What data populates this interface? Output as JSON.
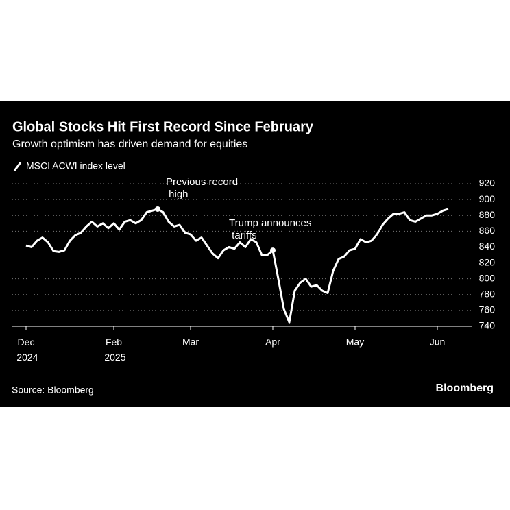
{
  "chart_data": {
    "type": "line",
    "title": "Global Stocks Hit First Record Since February",
    "subtitle": "Growth optimism has driven demand for equities",
    "source": "Source: Bloomberg",
    "brand": "Bloomberg",
    "categories": [
      "Dec 2024",
      null,
      null,
      null,
      null,
      null,
      null,
      null,
      null,
      null,
      null,
      null,
      null,
      null,
      null,
      null,
      "Feb 2025",
      null,
      null,
      null,
      null,
      null,
      null,
      null,
      null,
      null,
      null,
      null,
      null,
      null,
      "Mar",
      null,
      null,
      null,
      null,
      null,
      null,
      null,
      null,
      null,
      null,
      null,
      null,
      null,
      null,
      "Apr",
      null,
      null,
      null,
      null,
      null,
      null,
      null,
      null,
      null,
      null,
      null,
      null,
      null,
      null,
      "May",
      null,
      null,
      null,
      null,
      null,
      null,
      null,
      null,
      null,
      null,
      null,
      null,
      null,
      null,
      "Jun",
      null,
      null
    ],
    "series": [
      {
        "name": "MSCI ACWI index level",
        "color": "#ffffff",
        "values": [
          842,
          840,
          848,
          852,
          846,
          835,
          834,
          836,
          848,
          855,
          858,
          866,
          872,
          866,
          870,
          864,
          870,
          862,
          872,
          874,
          870,
          874,
          884,
          886,
          888,
          884,
          872,
          866,
          868,
          858,
          856,
          848,
          852,
          842,
          832,
          826,
          836,
          840,
          838,
          846,
          840,
          850,
          846,
          830,
          830,
          836,
          800,
          762,
          745,
          785,
          795,
          800,
          790,
          792,
          785,
          782,
          810,
          825,
          828,
          836,
          838,
          850,
          846,
          848,
          856,
          868,
          876,
          882,
          882,
          884,
          874,
          872,
          876,
          880,
          880,
          882,
          886,
          888
        ]
      }
    ],
    "annotations": [
      "Previous record high",
      "Trump announces tariffs"
    ],
    "ylim": [
      740,
      920
    ],
    "yticks": [
      740,
      760,
      780,
      800,
      820,
      840,
      860,
      880,
      900,
      920
    ],
    "grid": true
  }
}
